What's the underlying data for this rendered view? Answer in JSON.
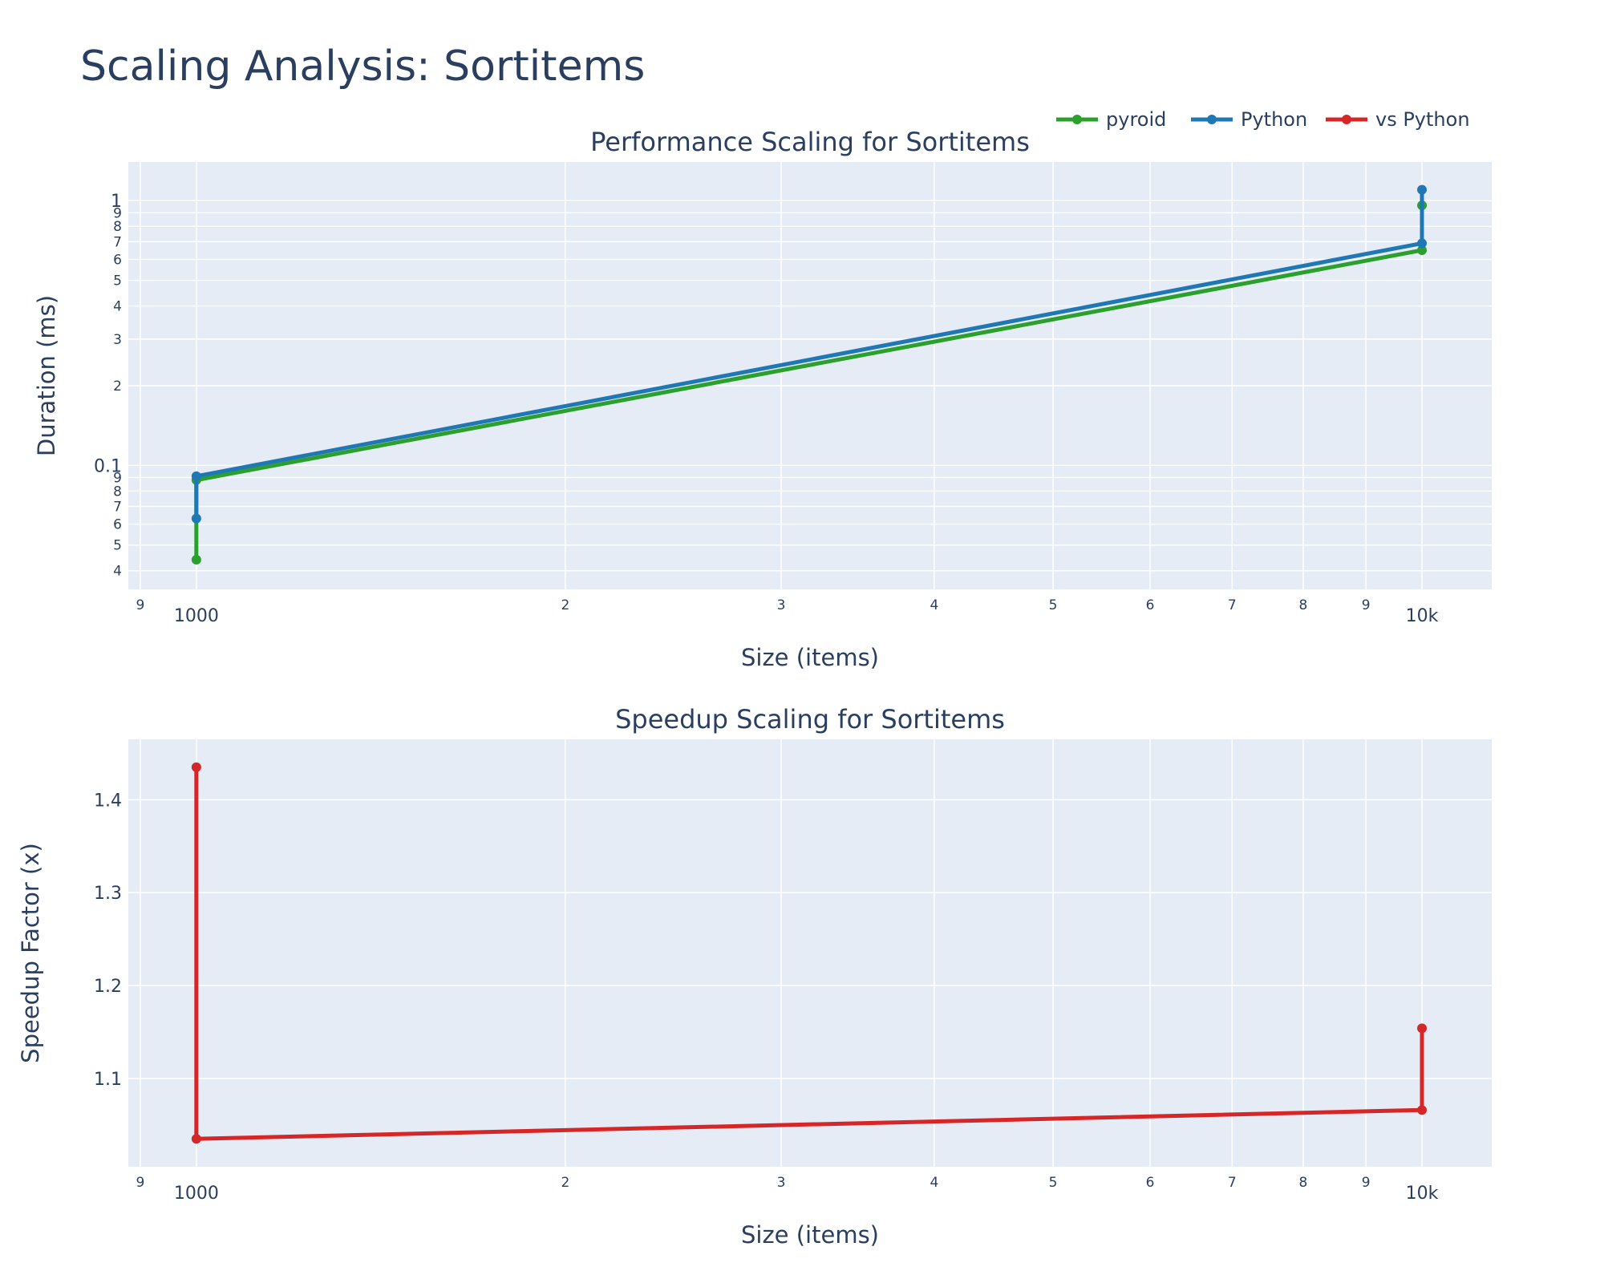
{
  "title": "Scaling Analysis: Sortitems",
  "colors": {
    "plot_bg": "#e5ecf6",
    "grid": "#ffffff",
    "text": "#2a3f5f",
    "pyroid": "#2ca02c",
    "python": "#1f77b4",
    "vs_python": "#d62728"
  },
  "legend": {
    "placement": "top-right",
    "items": [
      {
        "label": "pyroid",
        "color": "#2ca02c"
      },
      {
        "label": "Python",
        "color": "#1f77b4"
      },
      {
        "label": "vs Python",
        "color": "#d62728"
      }
    ]
  },
  "chart_data": [
    {
      "type": "line",
      "title": "Performance Scaling for Sortitems",
      "xlabel": "Size (items)",
      "ylabel": "Duration (ms)",
      "xscale": "log",
      "yscale": "log",
      "xlim": [
        880,
        11400
      ],
      "ylim": [
        0.034,
        1.4
      ],
      "grid": true,
      "x_major_ticks": [
        {
          "value": 1000,
          "label": "1000"
        },
        {
          "value": 10000,
          "label": "10k"
        }
      ],
      "x_minor_ticks": [
        {
          "value": 900,
          "label": "9"
        },
        {
          "value": 2000,
          "label": "2"
        },
        {
          "value": 3000,
          "label": "3"
        },
        {
          "value": 4000,
          "label": "4"
        },
        {
          "value": 5000,
          "label": "5"
        },
        {
          "value": 6000,
          "label": "6"
        },
        {
          "value": 7000,
          "label": "7"
        },
        {
          "value": 8000,
          "label": "8"
        },
        {
          "value": 9000,
          "label": "9"
        }
      ],
      "y_major_ticks": [
        {
          "value": 0.1,
          "label": "0.1"
        },
        {
          "value": 1,
          "label": "1"
        }
      ],
      "y_minor_ticks": [
        {
          "value": 0.04,
          "label": "4"
        },
        {
          "value": 0.05,
          "label": "5"
        },
        {
          "value": 0.06,
          "label": "6"
        },
        {
          "value": 0.07,
          "label": "7"
        },
        {
          "value": 0.08,
          "label": "8"
        },
        {
          "value": 0.09,
          "label": "9"
        },
        {
          "value": 0.2,
          "label": "2"
        },
        {
          "value": 0.3,
          "label": "3"
        },
        {
          "value": 0.4,
          "label": "4"
        },
        {
          "value": 0.5,
          "label": "5"
        },
        {
          "value": 0.6,
          "label": "6"
        },
        {
          "value": 0.7,
          "label": "7"
        },
        {
          "value": 0.8,
          "label": "8"
        },
        {
          "value": 0.9,
          "label": "9"
        }
      ],
      "series": [
        {
          "name": "pyroid",
          "color": "#2ca02c",
          "x": [
            1000,
            1000,
            10000,
            10000
          ],
          "y": [
            0.044,
            0.088,
            0.65,
            0.96
          ]
        },
        {
          "name": "Python",
          "color": "#1f77b4",
          "x": [
            1000,
            1000,
            10000,
            10000
          ],
          "y": [
            0.063,
            0.091,
            0.69,
            1.1
          ]
        }
      ]
    },
    {
      "type": "line",
      "title": "Speedup Scaling for Sortitems",
      "xlabel": "Size (items)",
      "ylabel": "Speedup Factor (x)",
      "xscale": "log",
      "yscale": "linear",
      "xlim": [
        880,
        11400
      ],
      "ylim": [
        1.005,
        1.465
      ],
      "grid": true,
      "x_major_ticks": [
        {
          "value": 1000,
          "label": "1000"
        },
        {
          "value": 10000,
          "label": "10k"
        }
      ],
      "x_minor_ticks": [
        {
          "value": 900,
          "label": "9"
        },
        {
          "value": 2000,
          "label": "2"
        },
        {
          "value": 3000,
          "label": "3"
        },
        {
          "value": 4000,
          "label": "4"
        },
        {
          "value": 5000,
          "label": "5"
        },
        {
          "value": 6000,
          "label": "6"
        },
        {
          "value": 7000,
          "label": "7"
        },
        {
          "value": 8000,
          "label": "8"
        },
        {
          "value": 9000,
          "label": "9"
        }
      ],
      "y_major_ticks": [
        {
          "value": 1.1,
          "label": "1.1"
        },
        {
          "value": 1.2,
          "label": "1.2"
        },
        {
          "value": 1.3,
          "label": "1.3"
        },
        {
          "value": 1.4,
          "label": "1.4"
        }
      ],
      "y_minor_ticks": [],
      "series": [
        {
          "name": "vs Python",
          "color": "#d62728",
          "x": [
            1000,
            1000,
            10000,
            10000
          ],
          "y": [
            1.435,
            1.035,
            1.066,
            1.154
          ]
        }
      ]
    }
  ]
}
